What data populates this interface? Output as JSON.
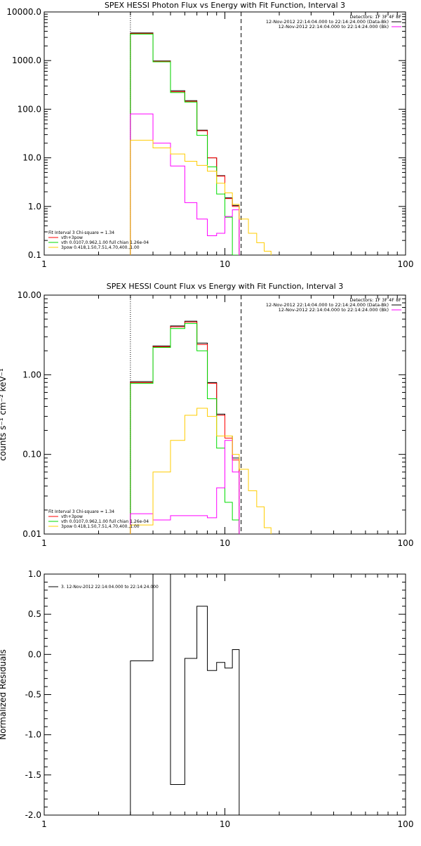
{
  "chart_data": [
    {
      "type": "line",
      "title": "SPEX HESSI Photon Flux vs Energy with Fit Function, Interval 3",
      "xscale": "log",
      "yscale": "log",
      "xlim": [
        1,
        100
      ],
      "ylim": [
        0.1,
        10000
      ],
      "xticks": [
        1,
        10,
        100
      ],
      "xtick_labels": [
        "1",
        "10",
        "100"
      ],
      "yticks": [
        0.1,
        1,
        10,
        100,
        1000,
        10000
      ],
      "ytick_labels": [
        "0.1",
        "1.0",
        "10.0",
        "100.0",
        "1000.0",
        "10000.0"
      ],
      "vlines": [
        {
          "x": 3,
          "style": "dotted"
        },
        {
          "x": 12.3,
          "style": "dashed"
        }
      ],
      "header_lines": [
        "Detectors: 1F 3F 4F 8F",
        "12-Nov-2012 22:14:04.000 to 22:14:24.000 (Data-Bk)",
        "12-Nov-2012 22:14:04.000 to 22:14:24.000 (Bk)"
      ],
      "header_colors": [
        "",
        "#000000",
        "#ff00ff"
      ],
      "legend_lines": [
        {
          "text": "Fit Interval 3   Chi-square = 1.34",
          "color": ""
        },
        {
          "text": "vth+3pow",
          "color": "#ff0000"
        },
        {
          "text": "vth 0.0107,0.962,1.00  full chian 1.26e-04",
          "color": "#00dd00"
        },
        {
          "text": "3pow 0.418,1.50,7.51,4.70,400.,1.00",
          "color": "#ffcc00"
        }
      ],
      "series": [
        {
          "color": "#000000",
          "edges": [
            3,
            4,
            5,
            6,
            7,
            8,
            9,
            10,
            11,
            12
          ],
          "values": [
            3700,
            980,
            240,
            150,
            37,
            10,
            4.3,
            1.5,
            1.05
          ]
        },
        {
          "color": "#ff0000",
          "edges": [
            3,
            4,
            5,
            6,
            7,
            8,
            9,
            10,
            11,
            12
          ],
          "values": [
            3600,
            960,
            230,
            145,
            36,
            10,
            4.2,
            1.45,
            1.0
          ]
        },
        {
          "color": "#00dd00",
          "edges": [
            3,
            4,
            5,
            6,
            7,
            8,
            9,
            10,
            11,
            12
          ],
          "values": [
            3500,
            940,
            220,
            140,
            29,
            6.5,
            1.8,
            0.6,
            0.1
          ]
        },
        {
          "color": "#ff00ff",
          "edges": [
            3,
            4,
            5,
            6,
            7,
            8,
            9,
            10,
            11,
            12
          ],
          "values": [
            80,
            20,
            6.8,
            1.2,
            0.55,
            0.25,
            0.28,
            0.62,
            0.85
          ]
        },
        {
          "color": "#ffcc00",
          "edges": [
            3,
            4,
            5,
            6,
            7,
            8,
            9,
            10,
            11,
            12,
            13.5,
            15,
            16.5,
            18
          ],
          "values": [
            23,
            16,
            12,
            8.5,
            7,
            5.3,
            3,
            1.9,
            1.1,
            0.55,
            0.28,
            0.18,
            0.12
          ]
        }
      ]
    },
    {
      "type": "line",
      "title": "SPEX HESSI Count Flux vs Energy with Fit Function, Interval 3",
      "ylabel": "counts s⁻¹ cm⁻² keV⁻¹",
      "xscale": "log",
      "yscale": "log",
      "xlim": [
        1,
        100
      ],
      "ylim": [
        0.01,
        10
      ],
      "xticks": [
        1,
        10,
        100
      ],
      "xtick_labels": [
        "1",
        "10",
        "100"
      ],
      "yticks": [
        0.01,
        0.1,
        1,
        10
      ],
      "ytick_labels": [
        "0.01",
        "0.10",
        "1.00",
        "10.00"
      ],
      "vlines": [
        {
          "x": 3,
          "style": "dotted"
        },
        {
          "x": 12.3,
          "style": "dashed"
        }
      ],
      "header_lines": [
        "Detectors: 1F 3F 4F 8F",
        "12-Nov-2012 22:14:04.000 to 22:14:24.000 (Data-Bk)",
        "12-Nov-2012 22:14:04.000 to 22:14:24.000 (Bk)"
      ],
      "header_colors": [
        "",
        "#000000",
        "#ff00ff"
      ],
      "legend_lines": [
        {
          "text": "Fit Interval 3   Chi-square = 1.34",
          "color": ""
        },
        {
          "text": "vth+3pow",
          "color": "#ff0000"
        },
        {
          "text": "vth 0.0107,0.962,1.00  full chian 1.26e-04",
          "color": "#00dd00"
        },
        {
          "text": "3pow 0.418,1.50,7.51,4.70,400.,1.00",
          "color": "#ffcc00"
        }
      ],
      "series": [
        {
          "color": "#000000",
          "edges": [
            3,
            4,
            5,
            6,
            7,
            8,
            9,
            10,
            11,
            12
          ],
          "values": [
            0.82,
            2.3,
            4.1,
            4.7,
            2.5,
            0.8,
            0.32,
            0.17,
            0.09
          ]
        },
        {
          "color": "#ff0000",
          "edges": [
            3,
            4,
            5,
            6,
            7,
            8,
            9,
            10,
            11,
            12
          ],
          "values": [
            0.8,
            2.25,
            4.0,
            4.6,
            2.4,
            0.78,
            0.31,
            0.16,
            0.085
          ]
        },
        {
          "color": "#00dd00",
          "edges": [
            3,
            4,
            5,
            6,
            7,
            8,
            9,
            10,
            11,
            12
          ],
          "values": [
            0.78,
            2.2,
            3.8,
            4.4,
            2.0,
            0.5,
            0.12,
            0.025,
            0.015
          ]
        },
        {
          "color": "#ff00ff",
          "edges": [
            3,
            4,
            5,
            6,
            7,
            8,
            9,
            10,
            11,
            12
          ],
          "values": [
            0.018,
            0.015,
            0.017,
            0.017,
            0.017,
            0.016,
            0.038,
            0.15,
            0.06
          ]
        },
        {
          "color": "#ffcc00",
          "edges": [
            3,
            4,
            5,
            6,
            7,
            8,
            9,
            10,
            11,
            12,
            13.5,
            15,
            16.5,
            18
          ],
          "values": [
            0.013,
            0.06,
            0.15,
            0.31,
            0.38,
            0.3,
            0.17,
            0.17,
            0.1,
            0.065,
            0.035,
            0.022,
            0.012
          ]
        }
      ]
    },
    {
      "type": "line",
      "ylabel": "Normalized Residuals",
      "xscale": "log",
      "yscale": "linear",
      "xlim": [
        1,
        100
      ],
      "ylim": [
        -2,
        1
      ],
      "xticks": [
        1,
        10,
        100
      ],
      "xtick_labels": [
        "1",
        "10",
        "100"
      ],
      "yticks": [
        -2,
        -1.5,
        -1,
        -0.5,
        0,
        0.5,
        1
      ],
      "ytick_labels": [
        "-2.0",
        "-1.5",
        "-1.0",
        "-0.5",
        "0.0",
        "0.5",
        "1.0"
      ],
      "legend_lines": [
        {
          "text": "3. 12-Nov-2012 22:14:04.000 to 22:14:24.000",
          "color": "#000000"
        }
      ],
      "series": [
        {
          "color": "#000000",
          "edges": [
            3,
            4,
            5,
            6,
            7,
            8,
            9,
            10,
            11,
            12
          ],
          "values": [
            -0.08,
            1.02,
            -1.62,
            -0.05,
            0.6,
            -0.2,
            -0.1,
            -0.17,
            0.06
          ],
          "drop_to": -2
        }
      ]
    }
  ]
}
